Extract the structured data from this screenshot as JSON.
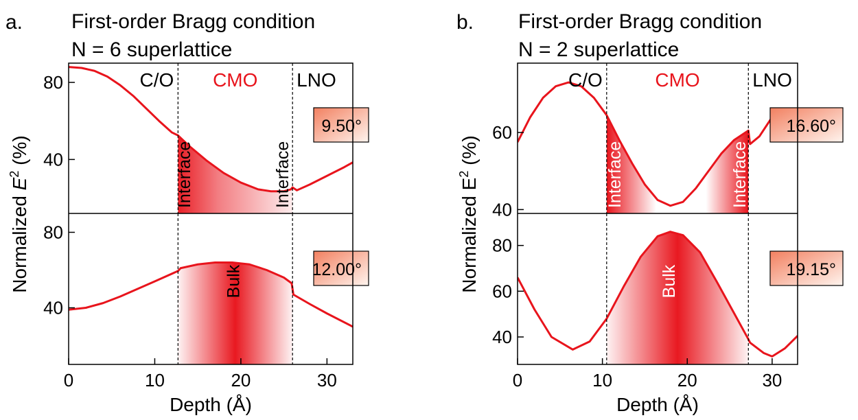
{
  "chart_data": [
    {
      "type": "line",
      "panel_label": "a.",
      "title": "First-order Bragg condition",
      "subtitle": "N = 6 superlattice",
      "xlabel": "Depth (Å)",
      "ylabel_prefix": "Normalized ",
      "ylabel_var": "E",
      "ylabel_sup": "2",
      "ylabel_suffix": " (%)",
      "xlim": [
        0,
        33
      ],
      "xticks": [
        0,
        10,
        20,
        30
      ],
      "region_boundaries": [
        12.7,
        26
      ],
      "region_labels": [
        {
          "text": "C/O",
          "color": "#000000"
        },
        {
          "text": "CMO",
          "color": "#e8141c"
        },
        {
          "text": "LNO",
          "color": "#000000"
        }
      ],
      "line_color": "#e8141c",
      "subplots": [
        {
          "angle_label": "9.50°",
          "ylim": [
            12,
            90
          ],
          "yticks": [
            40,
            80
          ],
          "x": [
            0,
            1.5,
            3,
            4.5,
            6,
            7.5,
            9,
            10.5,
            12,
            12.7,
            14,
            16,
            18,
            20,
            22,
            23.5,
            25,
            25.8,
            26,
            26.5,
            28,
            30,
            32,
            33
          ],
          "y": [
            88,
            87.5,
            86,
            83,
            78.5,
            73,
            66.5,
            60,
            54,
            52.5,
            47,
            39.5,
            33,
            28,
            24.5,
            23.5,
            23.5,
            24.5,
            25.5,
            24,
            27,
            31.5,
            36,
            38.5
          ],
          "fill": {
            "x_start": 12.7,
            "x_end": 26,
            "style": "left-dense"
          },
          "fill_labels": [
            {
              "text": "Interface",
              "x": 13.6,
              "color": "#000000"
            },
            {
              "text": "Interface",
              "x": 25.0,
              "color": "#000000"
            }
          ]
        },
        {
          "angle_label": "12.00°",
          "ylim": [
            10,
            90
          ],
          "yticks": [
            40,
            80
          ],
          "x": [
            0,
            2,
            4,
            6,
            8,
            10,
            12.7,
            13,
            15,
            17,
            19,
            21,
            23,
            25,
            25.9,
            26.1,
            28,
            30,
            33
          ],
          "y": [
            39,
            40,
            42.5,
            46,
            50,
            54,
            59.5,
            61,
            63,
            64,
            64,
            63,
            60,
            56,
            53,
            47,
            42,
            37,
            30
          ],
          "fill": {
            "x_start": 12.7,
            "x_end": 26,
            "style": "center-dense"
          },
          "fill_labels": [
            {
              "text": "Bulk",
              "x": 19.3,
              "color": "#000000"
            }
          ]
        }
      ]
    },
    {
      "type": "line",
      "panel_label": "b.",
      "title": "First-order Bragg condition",
      "subtitle": "N = 2 superlattice",
      "xlabel": "Depth (Å)",
      "ylabel_prefix": "Normalized ",
      "ylabel_var": "E",
      "ylabel_sup": "2",
      "ylabel_suffix": " (%)",
      "xlim": [
        0,
        33
      ],
      "xticks": [
        0,
        10,
        20,
        30
      ],
      "region_boundaries": [
        10.5,
        27.2
      ],
      "region_labels": [
        {
          "text": "C/O",
          "color": "#000000"
        },
        {
          "text": "CMO",
          "color": "#e8141c"
        },
        {
          "text": "LNO",
          "color": "#000000"
        }
      ],
      "line_color": "#e8141c",
      "subplots": [
        {
          "angle_label": "16.60°",
          "ylim": [
            39,
            78
          ],
          "yticks": [
            40,
            60
          ],
          "x": [
            0,
            1.5,
            3,
            4.5,
            6,
            7.5,
            9,
            10.5,
            12,
            13.5,
            15,
            16.5,
            18,
            19.5,
            21,
            22.5,
            24,
            25.5,
            27.2,
            27.4,
            28.5,
            30,
            31.5,
            33
          ],
          "y": [
            57.5,
            64,
            69,
            72,
            73,
            72,
            69,
            64.5,
            58,
            52,
            46.5,
            42.5,
            41,
            42,
            45.5,
            50,
            54.5,
            58,
            60.5,
            57,
            59,
            64,
            62.5,
            60.5
          ],
          "fill": {
            "x_start": 10.5,
            "x_end": 27.2,
            "style": "two-edges"
          },
          "fill_labels": [
            {
              "text": "Interface",
              "x": 11.6,
              "color": "#ffffff"
            },
            {
              "text": "Interface",
              "x": 26.3,
              "color": "#ffffff"
            }
          ]
        },
        {
          "angle_label": "19.15°",
          "ylim": [
            28,
            94
          ],
          "yticks": [
            40,
            60,
            80
          ],
          "x": [
            0,
            2,
            4,
            6.5,
            8.5,
            10.5,
            12.5,
            14.5,
            16.5,
            18,
            19.5,
            21.5,
            23.5,
            25.5,
            27.2,
            27.4,
            29,
            30,
            31.5,
            33
          ],
          "y": [
            66,
            52,
            40,
            34.5,
            38,
            48,
            62,
            75,
            84,
            86,
            84.5,
            77,
            64,
            50.5,
            39,
            37.5,
            33,
            31.5,
            35,
            40.5
          ],
          "fill": {
            "x_start": 10.5,
            "x_end": 27.2,
            "style": "center-dense"
          },
          "fill_labels": [
            {
              "text": "Bulk",
              "x": 18.0,
              "color": "#ffffff"
            }
          ]
        }
      ]
    }
  ]
}
